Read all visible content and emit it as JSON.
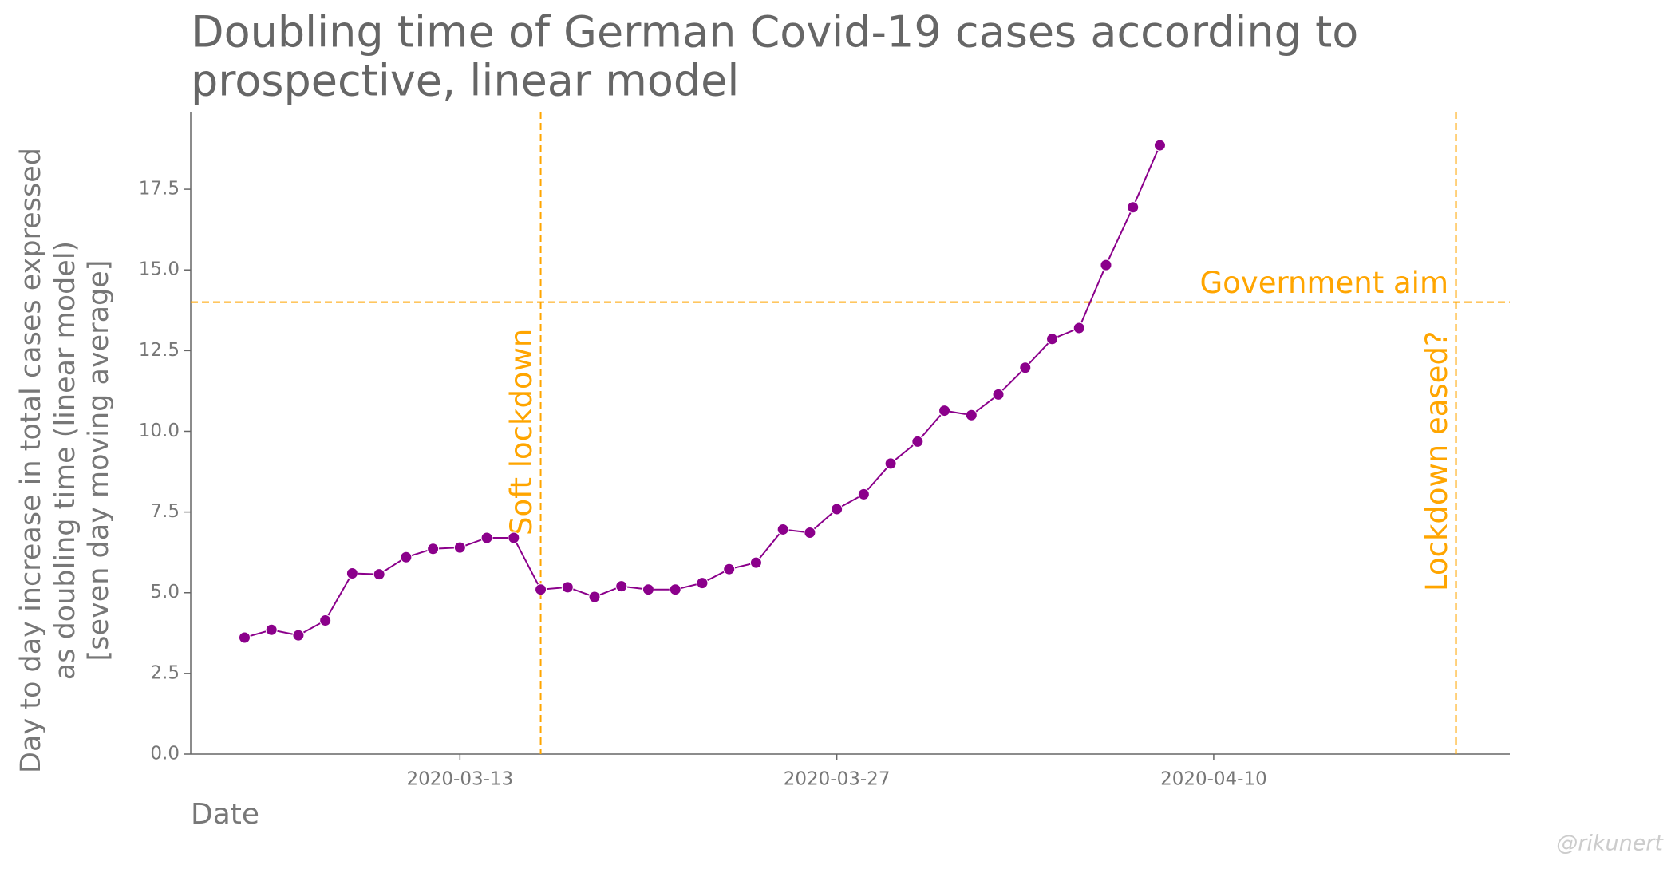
{
  "chart_data": {
    "type": "line",
    "title": [
      "Doubling time of German Covid-19 cases according to",
      "prospective, linear model"
    ],
    "xlabel": "Date",
    "ylabel": [
      "Day to day increase in total cases expressed",
      "as doubling time (linear model)",
      "[seven day moving average]"
    ],
    "x": [
      "2020-03-05",
      "2020-03-06",
      "2020-03-07",
      "2020-03-08",
      "2020-03-09",
      "2020-03-10",
      "2020-03-11",
      "2020-03-12",
      "2020-03-13",
      "2020-03-14",
      "2020-03-15",
      "2020-03-16",
      "2020-03-17",
      "2020-03-18",
      "2020-03-19",
      "2020-03-20",
      "2020-03-21",
      "2020-03-22",
      "2020-03-23",
      "2020-03-24",
      "2020-03-25",
      "2020-03-26",
      "2020-03-27",
      "2020-03-28",
      "2020-03-29",
      "2020-03-30",
      "2020-03-31",
      "2020-04-01",
      "2020-04-02",
      "2020-04-03",
      "2020-04-04",
      "2020-04-05",
      "2020-04-06",
      "2020-04-07",
      "2020-04-08"
    ],
    "values": [
      3.61,
      3.85,
      3.68,
      4.14,
      5.6,
      5.57,
      6.1,
      6.36,
      6.4,
      6.7,
      6.7,
      5.1,
      5.17,
      4.87,
      5.2,
      5.1,
      5.1,
      5.3,
      5.73,
      5.93,
      6.96,
      6.86,
      7.59,
      8.05,
      9.0,
      9.68,
      10.64,
      10.5,
      11.14,
      11.97,
      12.86,
      13.2,
      15.15,
      16.94,
      18.86
    ],
    "color": "#8b008b",
    "xlim": [
      "2020-03-03",
      "2020-04-21"
    ],
    "xticks": [
      "2020-03-13",
      "2020-03-27",
      "2020-04-10"
    ],
    "ylim": [
      0,
      19.9
    ],
    "yticks": [
      {
        "value": 0,
        "label": "0.0"
      },
      {
        "value": 2.5,
        "label": "2.5"
      },
      {
        "value": 5,
        "label": "5.0"
      },
      {
        "value": 7.5,
        "label": "7.5"
      },
      {
        "value": 10,
        "label": "10.0"
      },
      {
        "value": 12.5,
        "label": "12.5"
      },
      {
        "value": 15,
        "label": "15.0"
      },
      {
        "value": 17.5,
        "label": "17.5"
      }
    ],
    "hlines": [
      {
        "y": 14,
        "label": "Government aim",
        "color": "#ffa500"
      }
    ],
    "vlines": [
      {
        "x": "2020-03-16",
        "label": "Soft lockdown",
        "color": "#ffa500"
      },
      {
        "x": "2020-04-19",
        "label": "Lockdown eased?",
        "color": "#ffa500"
      }
    ],
    "watermark": "@rikunert"
  }
}
